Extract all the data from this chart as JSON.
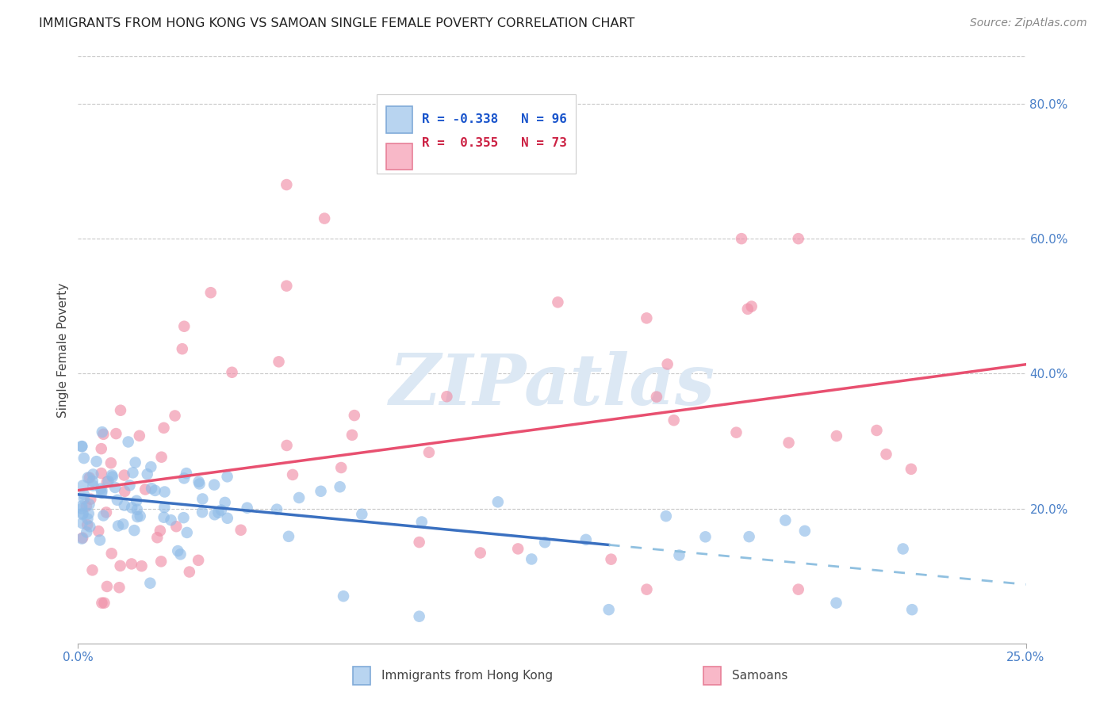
{
  "title": "IMMIGRANTS FROM HONG KONG VS SAMOAN SINGLE FEMALE POVERTY CORRELATION CHART",
  "source": "Source: ZipAtlas.com",
  "ylabel": "Single Female Poverty",
  "ytick_labels": [
    "20.0%",
    "40.0%",
    "60.0%",
    "80.0%"
  ],
  "ytick_values": [
    0.2,
    0.4,
    0.6,
    0.8
  ],
  "xmin": 0.0,
  "xmax": 0.25,
  "ymin": 0.0,
  "ymax": 0.87,
  "hk_color": "#90bce8",
  "sa_color": "#f090a8",
  "hk_line_color": "#3a70c0",
  "sa_line_color": "#e85070",
  "hk_line_dashed_color": "#90c0e0",
  "watermark": "ZIPatlas",
  "watermark_color": "#dce8f4",
  "background_color": "#ffffff",
  "grid_color": "#c8c8c8",
  "tick_color": "#4a80c8",
  "legend_hk_text": "R = -0.338   N = 96",
  "legend_sa_text": "R =  0.355   N = 73",
  "legend_hk_color": "#1a55cc",
  "legend_sa_color": "#cc2244",
  "legend_hk_fill": "#b8d4f0",
  "legend_hk_edge": "#80aad8",
  "legend_sa_fill": "#f8b8c8",
  "legend_sa_edge": "#e88098",
  "bottom_legend_hk": "Immigrants from Hong Kong",
  "bottom_legend_sa": "Samoans"
}
